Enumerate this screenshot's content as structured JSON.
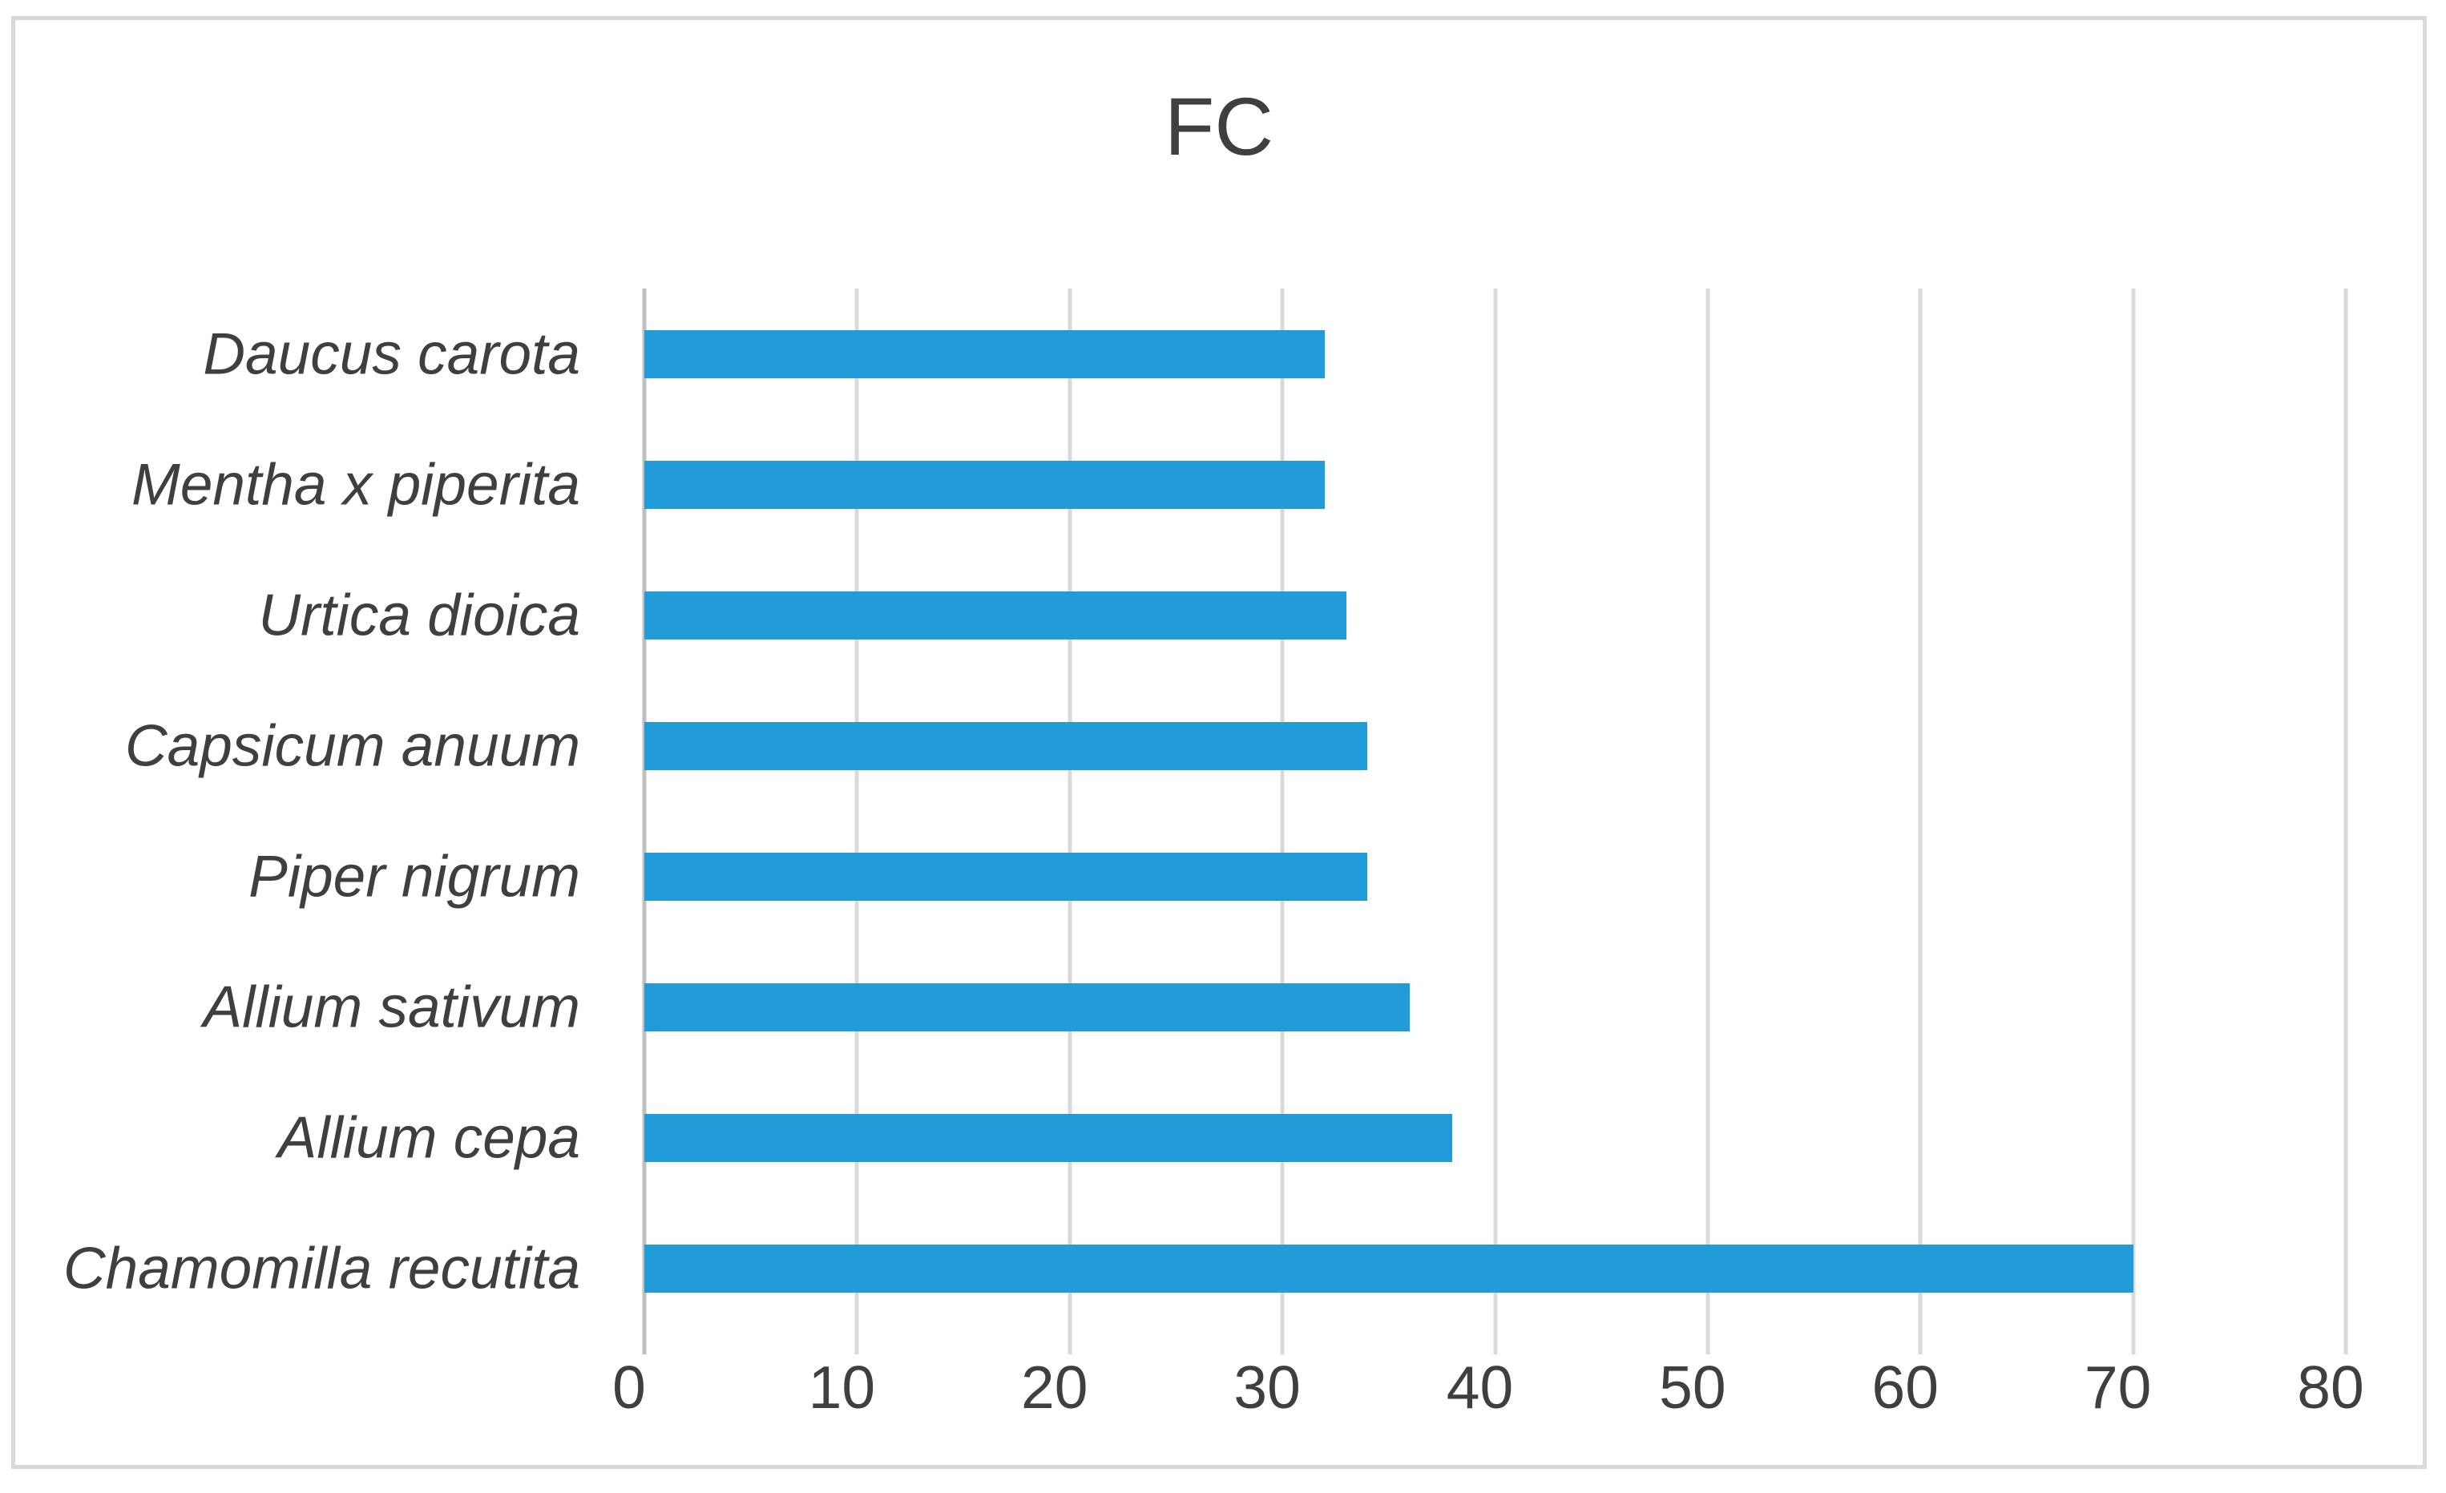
{
  "figure": {
    "background": "#ffffff",
    "frame_border_color": "#d9d9d9"
  },
  "chart_data": {
    "type": "bar",
    "orientation": "horizontal",
    "title": "FC",
    "categories": [
      "Daucus carota",
      "Mentha x piperita",
      "Urtica dioica",
      "Capsicum anuum",
      "Piper nigrum",
      "Allium sativum",
      "Allium cepa",
      "Chamomilla recutita"
    ],
    "values": [
      32,
      32,
      33,
      34,
      34,
      36,
      38,
      70
    ],
    "xlabel": "",
    "ylabel": "",
    "xlim": [
      0,
      80
    ],
    "xticks": [
      0,
      10,
      20,
      30,
      40,
      50,
      60,
      70,
      80
    ],
    "grid": true,
    "legend_position": "none",
    "bar_color": "#219cd9",
    "gridline_color": "#d9d9d9",
    "axis_line_color": "#bfbfbf",
    "text_color": "#3f3f3f",
    "category_label_style": "italic"
  }
}
